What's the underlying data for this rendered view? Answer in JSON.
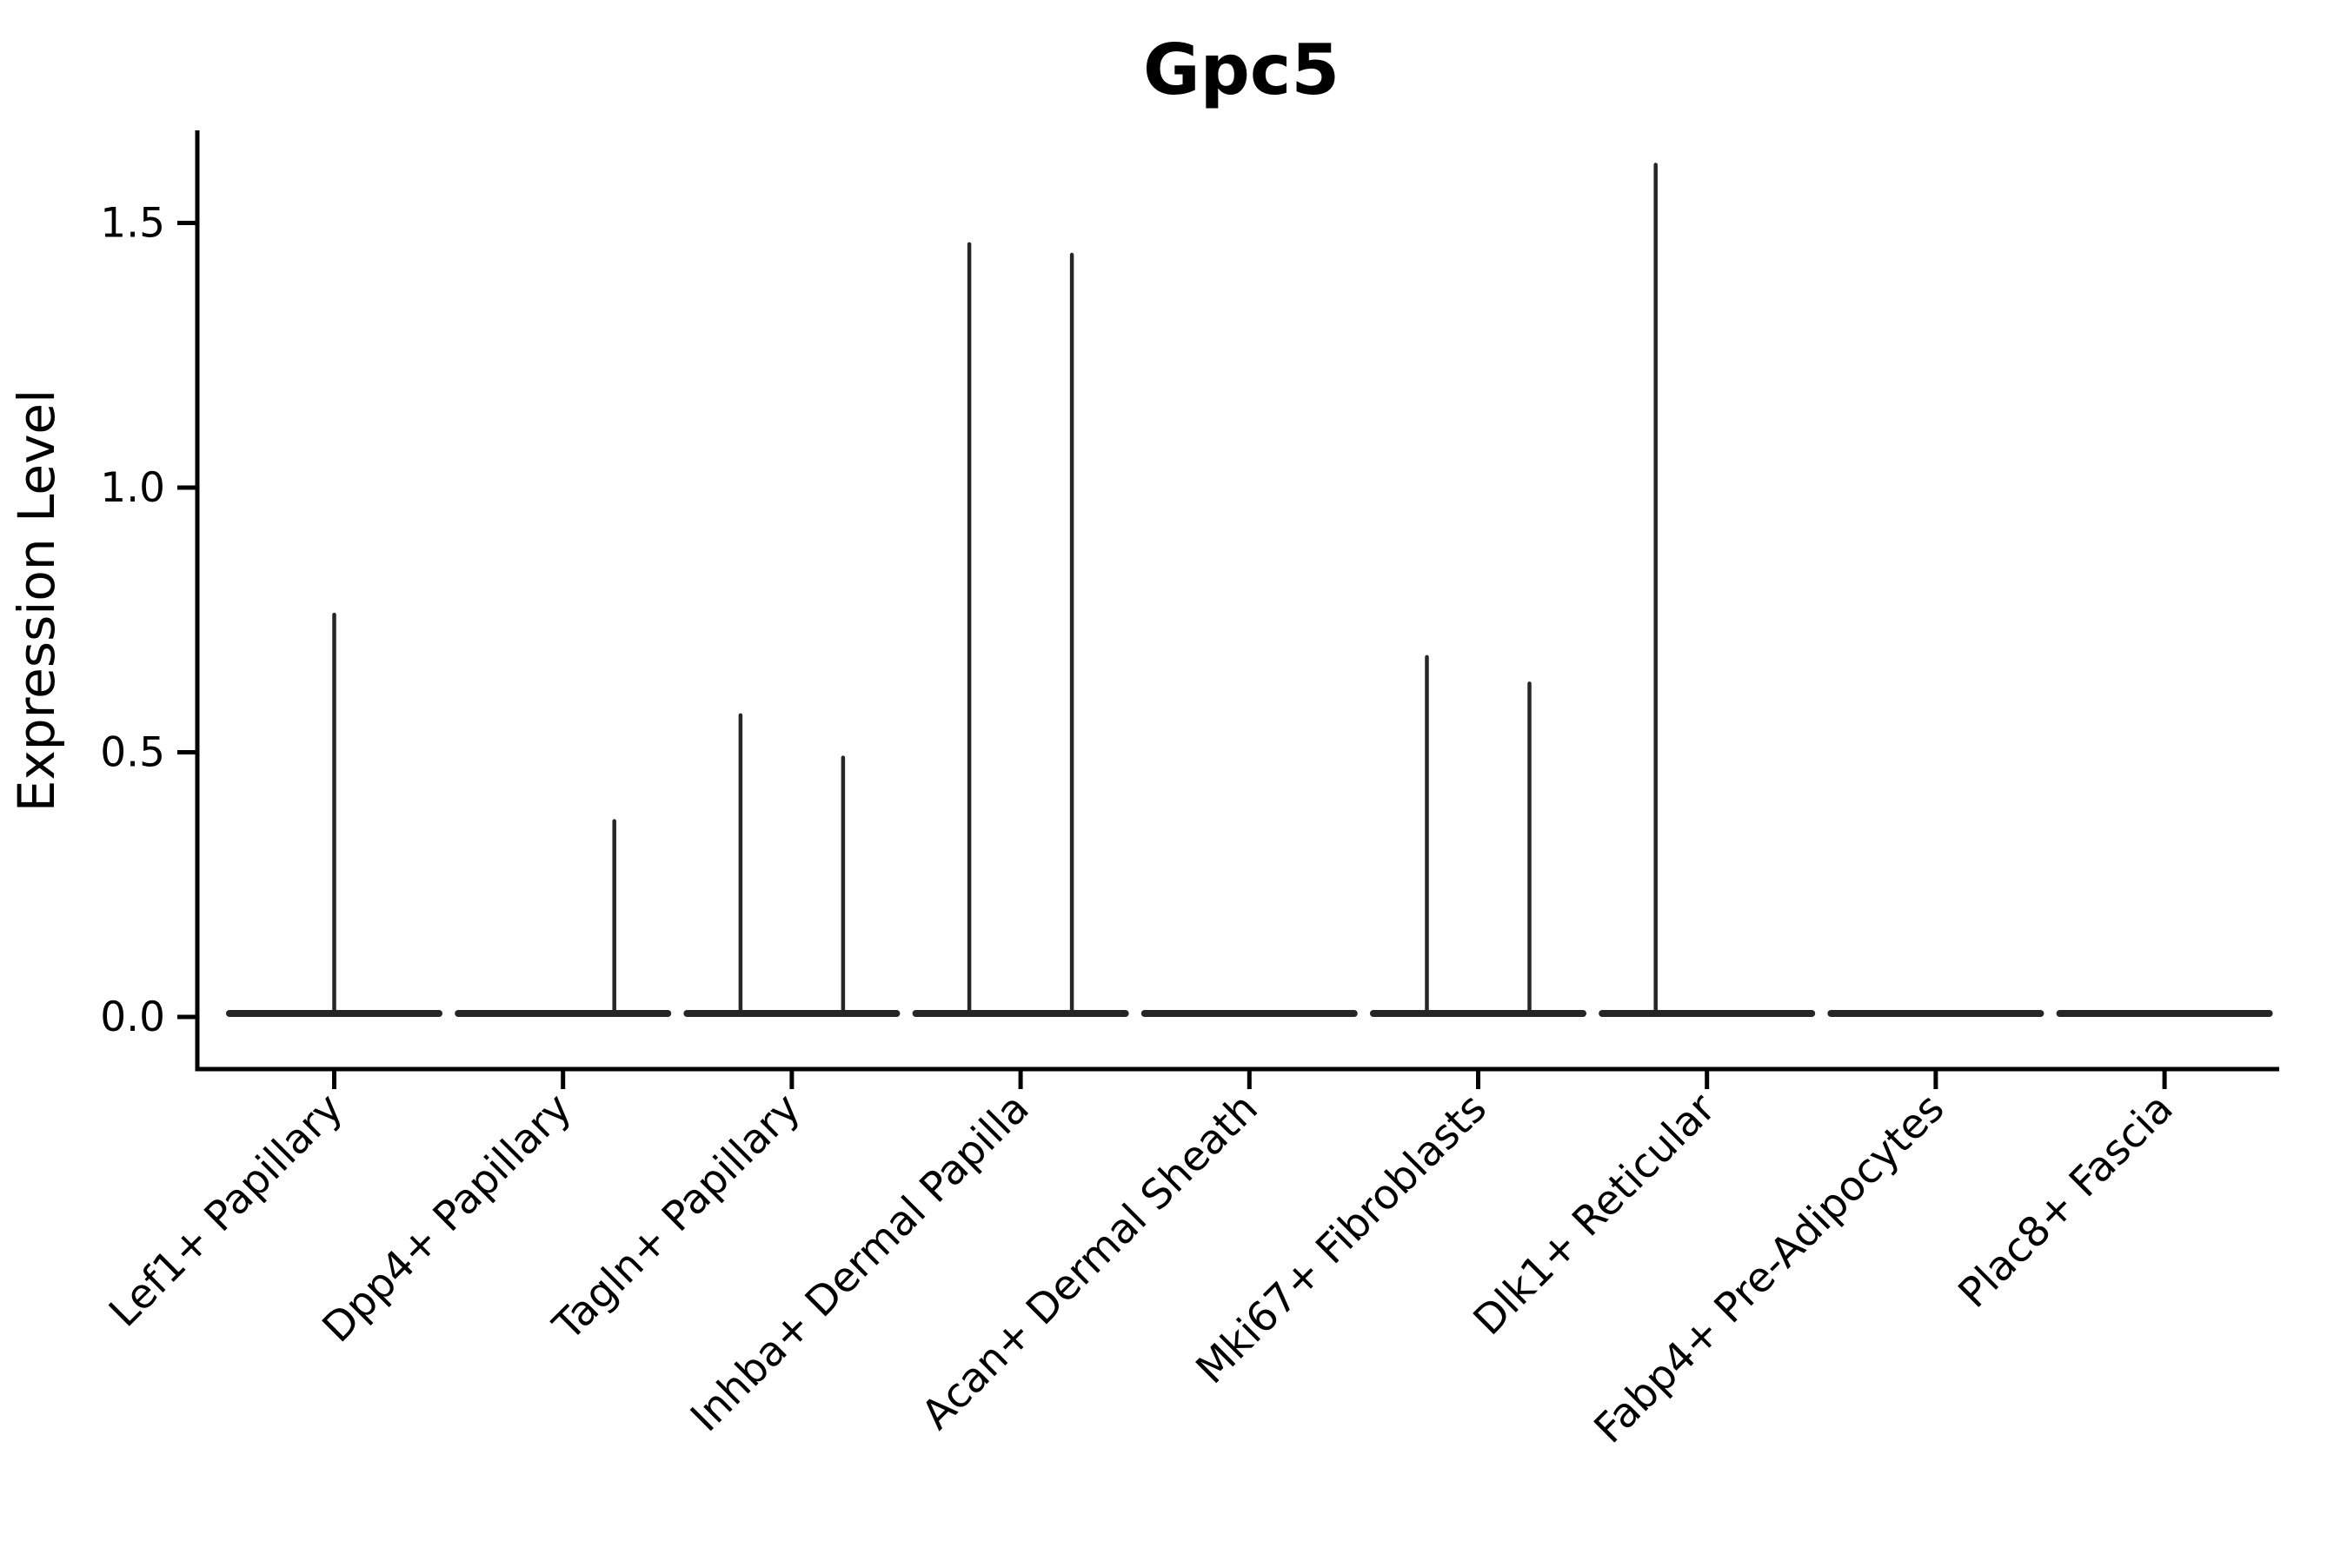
{
  "title": "Gpc5",
  "colors": {
    "background": "#ffffff",
    "axis": "#000000",
    "violin_stroke": "#262626",
    "text": "#000000"
  },
  "chart_data": {
    "type": "violin",
    "title": "Gpc5",
    "ylabel": "Expression Level",
    "xlabel": "",
    "legend": "none",
    "grid": false,
    "ylim": [
      -0.09,
      1.68
    ],
    "yticks": [
      {
        "label": "0.0",
        "value": 0.0
      },
      {
        "label": "0.5",
        "value": 0.5
      },
      {
        "label": "1.0",
        "value": 1.0
      },
      {
        "label": "1.5",
        "value": 1.5
      }
    ],
    "categories": [
      "Lef1+ Papillary",
      "Dpp4+ Papillary",
      "Tagln+ Papillary",
      "Inhba+ Dermal Papilla",
      "Acan+ Dermal Sheath",
      "Mki67+ Fibroblasts",
      "Dlk1+ Reticular",
      "Fabp4+ Pre-Adipocytes",
      "Plac8+ Fascia"
    ],
    "violins": [
      {
        "category": "Lef1+ Papillary",
        "spikes": [
          {
            "side": "center",
            "max": 0.76
          }
        ]
      },
      {
        "category": "Dpp4+ Papillary",
        "spikes": [
          {
            "side": "right",
            "max": 0.37
          }
        ]
      },
      {
        "category": "Tagln+ Papillary",
        "spikes": [
          {
            "side": "left",
            "max": 0.57
          },
          {
            "side": "right",
            "max": 0.49
          }
        ]
      },
      {
        "category": "Inhba+ Dermal Papilla",
        "spikes": [
          {
            "side": "left",
            "max": 1.46
          },
          {
            "side": "right",
            "max": 1.44
          }
        ]
      },
      {
        "category": "Acan+ Dermal Sheath",
        "spikes": []
      },
      {
        "category": "Mki67+ Fibroblasts",
        "spikes": [
          {
            "side": "left",
            "max": 0.68
          },
          {
            "side": "right",
            "max": 0.63
          }
        ]
      },
      {
        "category": "Dlk1+ Reticular",
        "spikes": [
          {
            "side": "left",
            "max": 1.61
          }
        ]
      },
      {
        "category": "Fabp4+ Pre-Adipocytes",
        "spikes": []
      },
      {
        "category": "Plac8+ Fascia",
        "spikes": []
      }
    ]
  }
}
